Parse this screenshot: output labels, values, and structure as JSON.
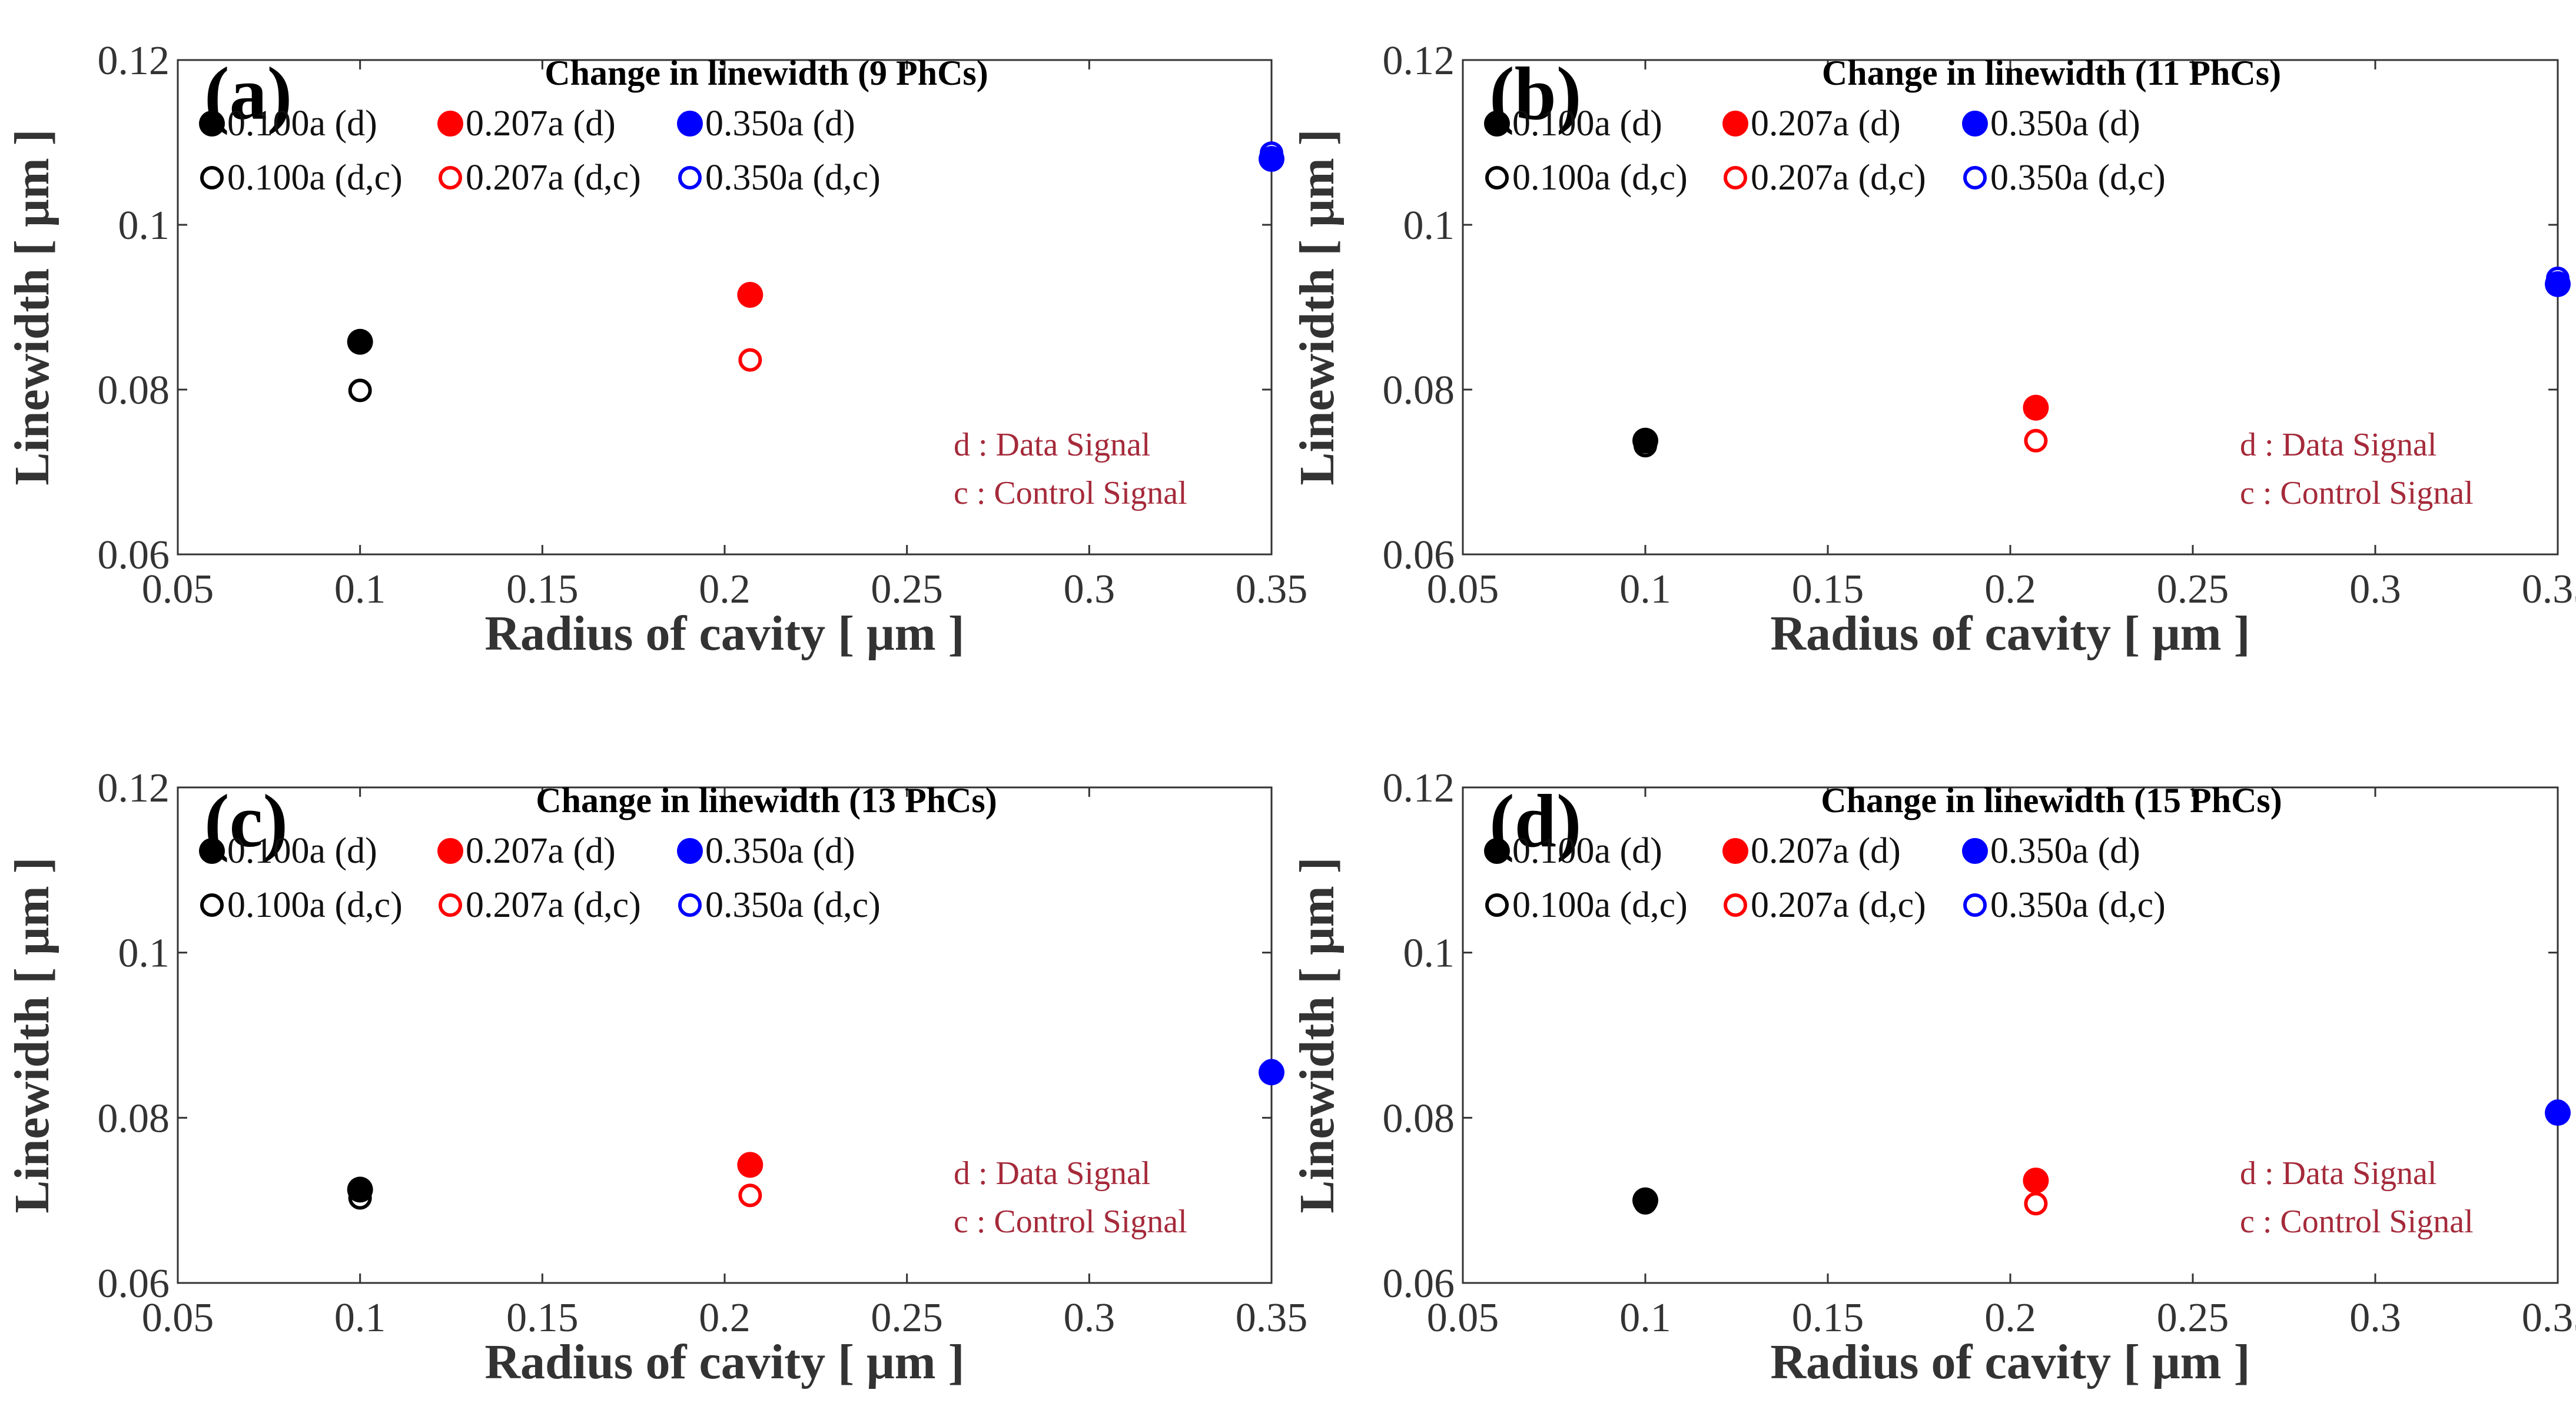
{
  "figure": {
    "shared": {
      "xlabel": "Radius of cavity [ μm ]",
      "ylabel": "Linewidth [ μm ]",
      "xlim": [
        0.05,
        0.35
      ],
      "ylim": [
        0.06,
        0.12
      ],
      "xticks": [
        "0.05",
        "0.1",
        "0.15",
        "0.2",
        "0.25",
        "0.3",
        "0.35"
      ],
      "xtick_values": [
        0.05,
        0.1,
        0.15,
        0.2,
        0.25,
        0.3,
        0.35
      ],
      "yticks": [
        "0.06",
        "0.08",
        "0.1",
        "0.12"
      ],
      "ytick_values": [
        0.06,
        0.08,
        0.1,
        0.12
      ],
      "legend": {
        "row1": [
          "0.100a (d)",
          "0.207a (d)",
          "0.350a (d)"
        ],
        "row2": [
          "0.100a (d,c)",
          "0.207a (d,c)",
          "0.350a (d,c)"
        ]
      },
      "note_lines": [
        "d : Data Signal",
        "c : Control Signal"
      ],
      "colors": {
        "r0100": "#000000",
        "r0207": "#ff0000",
        "r0350": "#0000ff",
        "note": "#a52a3a",
        "axis": "#333333"
      }
    }
  },
  "chart_data": [
    {
      "type": "scatter",
      "panel": "(a)",
      "title": "Change in linewidth (9 PhCs)",
      "xlabel": "Radius of cavity [ μm ]",
      "ylabel": "Linewidth [ μm ]",
      "xlim": [
        0.05,
        0.35
      ],
      "ylim": [
        0.06,
        0.12
      ],
      "series": [
        {
          "name": "0.100a (d)",
          "x": [
            0.1
          ],
          "y": [
            0.0858
          ],
          "marker": "filled"
        },
        {
          "name": "0.207a (d)",
          "x": [
            0.207
          ],
          "y": [
            0.0915
          ],
          "marker": "filled"
        },
        {
          "name": "0.350a (d)",
          "x": [
            0.35
          ],
          "y": [
            0.108
          ],
          "marker": "filled"
        },
        {
          "name": "0.100a (d,c)",
          "x": [
            0.1
          ],
          "y": [
            0.0799
          ],
          "marker": "open"
        },
        {
          "name": "0.207a (d,c)",
          "x": [
            0.207
          ],
          "y": [
            0.0836
          ],
          "marker": "open"
        },
        {
          "name": "0.350a (d,c)",
          "x": [
            0.35
          ],
          "y": [
            0.1087
          ],
          "marker": "open"
        }
      ]
    },
    {
      "type": "scatter",
      "panel": "(b)",
      "title": "Change in linewidth (11 PhCs)",
      "xlabel": "Radius of cavity [ μm ]",
      "ylabel": "Linewidth [ μm ]",
      "xlim": [
        0.05,
        0.35
      ],
      "ylim": [
        0.06,
        0.12
      ],
      "series": [
        {
          "name": "0.100a (d)",
          "x": [
            0.1
          ],
          "y": [
            0.0738
          ],
          "marker": "filled"
        },
        {
          "name": "0.207a (d)",
          "x": [
            0.207
          ],
          "y": [
            0.0778
          ],
          "marker": "filled"
        },
        {
          "name": "0.350a (d)",
          "x": [
            0.35
          ],
          "y": [
            0.0928
          ],
          "marker": "filled"
        },
        {
          "name": "0.100a (d,c)",
          "x": [
            0.1
          ],
          "y": [
            0.0732
          ],
          "marker": "open"
        },
        {
          "name": "0.207a (d,c)",
          "x": [
            0.207
          ],
          "y": [
            0.0738
          ],
          "marker": "open"
        },
        {
          "name": "0.350a (d,c)",
          "x": [
            0.35
          ],
          "y": [
            0.0935
          ],
          "marker": "open"
        }
      ]
    },
    {
      "type": "scatter",
      "panel": "(c)",
      "title": "Change in linewidth (13 PhCs)",
      "xlabel": "Radius of cavity [ μm ]",
      "ylabel": "Linewidth [ μm ]",
      "xlim": [
        0.05,
        0.35
      ],
      "ylim": [
        0.06,
        0.12
      ],
      "series": [
        {
          "name": "0.100a (d)",
          "x": [
            0.1
          ],
          "y": [
            0.0713
          ],
          "marker": "filled"
        },
        {
          "name": "0.207a (d)",
          "x": [
            0.207
          ],
          "y": [
            0.0743
          ],
          "marker": "filled"
        },
        {
          "name": "0.350a (d)",
          "x": [
            0.35
          ],
          "y": [
            0.0855
          ],
          "marker": "filled"
        },
        {
          "name": "0.100a (d,c)",
          "x": [
            0.1
          ],
          "y": [
            0.0703
          ],
          "marker": "open"
        },
        {
          "name": "0.207a (d,c)",
          "x": [
            0.207
          ],
          "y": [
            0.0706
          ],
          "marker": "open"
        },
        {
          "name": "0.350a (d,c)",
          "x": [
            0.35
          ],
          "y": [
            0.0857
          ],
          "marker": "open"
        }
      ]
    },
    {
      "type": "scatter",
      "panel": "(d)",
      "title": "Change in linewidth (15 PhCs)",
      "xlabel": "Radius of cavity [ μm ]",
      "ylabel": "Linewidth [ μm ]",
      "xlim": [
        0.05,
        0.35
      ],
      "ylim": [
        0.06,
        0.12
      ],
      "series": [
        {
          "name": "0.100a (d)",
          "x": [
            0.1
          ],
          "y": [
            0.07
          ],
          "marker": "filled"
        },
        {
          "name": "0.207a (d)",
          "x": [
            0.207
          ],
          "y": [
            0.0724
          ],
          "marker": "filled"
        },
        {
          "name": "0.350a (d)",
          "x": [
            0.35
          ],
          "y": [
            0.0806
          ],
          "marker": "filled"
        },
        {
          "name": "0.100a (d,c)",
          "x": [
            0.1
          ],
          "y": [
            0.0697
          ],
          "marker": "open"
        },
        {
          "name": "0.207a (d,c)",
          "x": [
            0.207
          ],
          "y": [
            0.0696
          ],
          "marker": "open"
        },
        {
          "name": "0.350a (d,c)",
          "x": [
            0.35
          ],
          "y": [
            0.0808
          ],
          "marker": "open"
        }
      ]
    }
  ]
}
